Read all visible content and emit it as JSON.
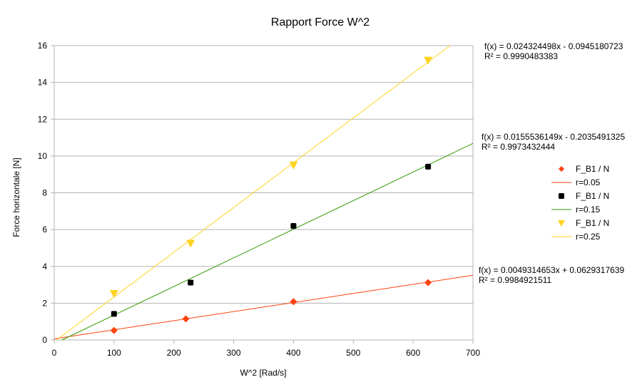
{
  "chart_data": {
    "type": "scatter",
    "title": "Rapport Force W^2",
    "xlabel": "W^2 [Rad/s]",
    "ylabel": "Force horizontale [N]",
    "xlim": [
      0,
      700
    ],
    "ylim": [
      0,
      16
    ],
    "xticks": [
      0,
      100,
      200,
      300,
      400,
      500,
      600,
      700
    ],
    "yticks": [
      0,
      2,
      4,
      6,
      8,
      10,
      12,
      14,
      16
    ],
    "grid": "horizontal",
    "legend_position": "right",
    "series": [
      {
        "marker_label": "F_B1 / N",
        "line_label": "r=0.05",
        "marker": "diamond",
        "color": "#ff420e",
        "line_color": "#ff420e",
        "x": [
          100,
          220,
          400,
          625
        ],
        "y": [
          0.52,
          1.15,
          2.08,
          3.12
        ],
        "fit": {
          "slope": 0.0049314653,
          "intercept": 0.0629317639
        },
        "equation": "f(x) = 0.0049314653x + 0.0629317639",
        "r2": "R² = 0.9984921511"
      },
      {
        "marker_label": "F_B1 / N",
        "line_label": "r=0.15",
        "marker": "square",
        "color": "#000000",
        "line_color": "#339900",
        "x": [
          100,
          228,
          400,
          625
        ],
        "y": [
          1.42,
          3.12,
          6.2,
          9.42
        ],
        "fit": {
          "slope": 0.0155536149,
          "intercept": -0.2035491325
        },
        "equation": "f(x) = 0.0155536149x - 0.2035491325",
        "r2": "R² = 0.9973432444"
      },
      {
        "marker_label": "F_B1 / N",
        "line_label": "r=0.25",
        "marker": "triangle-down",
        "color": "#ffd320",
        "line_color": "#ffd320",
        "x": [
          100,
          228,
          400,
          625
        ],
        "y": [
          2.52,
          5.25,
          9.5,
          15.2
        ],
        "fit": {
          "slope": 0.024324498,
          "intercept": -0.0945180723
        },
        "equation": "f(x) = 0.024324498x - 0.0945180723",
        "r2": "R² = 0.9990483383"
      }
    ]
  }
}
